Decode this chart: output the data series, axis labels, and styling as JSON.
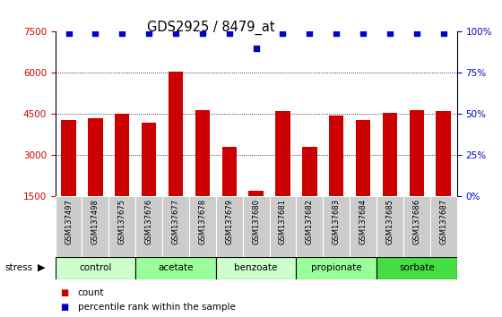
{
  "title": "GDS2925 / 8479_at",
  "samples": [
    "GSM137497",
    "GSM137498",
    "GSM137675",
    "GSM137676",
    "GSM137677",
    "GSM137678",
    "GSM137679",
    "GSM137680",
    "GSM137681",
    "GSM137682",
    "GSM137683",
    "GSM137684",
    "GSM137685",
    "GSM137686",
    "GSM137687"
  ],
  "counts": [
    4300,
    4350,
    4500,
    4200,
    6050,
    4650,
    3300,
    1700,
    4600,
    3300,
    4450,
    4300,
    4550,
    4650,
    4600
  ],
  "percentile_ranks": [
    99,
    99,
    99,
    99,
    99,
    99,
    99,
    90,
    99,
    99,
    99,
    99,
    99,
    99,
    99
  ],
  "bar_color": "#cc0000",
  "dot_color": "#0000cc",
  "ymin": 1500,
  "ymax": 7500,
  "yticks_left": [
    1500,
    3000,
    4500,
    6000,
    7500
  ],
  "yticks_right": [
    0,
    25,
    50,
    75,
    100
  ],
  "grid_lines": [
    3000,
    4500,
    6000
  ],
  "groups": [
    {
      "label": "control",
      "start": 0,
      "end": 2,
      "color": "#ccffcc"
    },
    {
      "label": "acetate",
      "start": 3,
      "end": 5,
      "color": "#99ff99"
    },
    {
      "label": "benzoate",
      "start": 6,
      "end": 8,
      "color": "#ccffcc"
    },
    {
      "label": "propionate",
      "start": 9,
      "end": 11,
      "color": "#99ff99"
    },
    {
      "label": "sorbate",
      "start": 12,
      "end": 14,
      "color": "#44dd44"
    }
  ],
  "legend_count_color": "#cc0000",
  "legend_pct_color": "#0000cc",
  "left_tick_color": "#cc0000",
  "right_tick_color": "#0000cc",
  "sample_box_color": "#cccccc",
  "bar_width": 0.55,
  "dot_size": 5
}
